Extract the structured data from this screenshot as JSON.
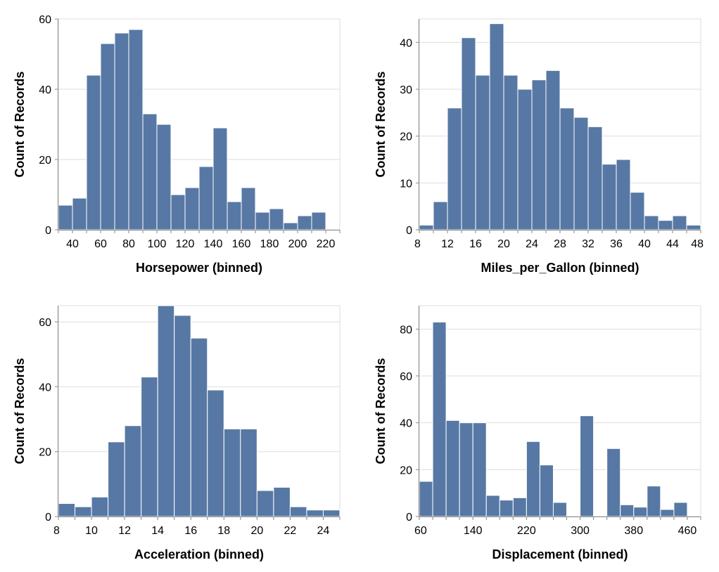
{
  "bar_color": "#5778a4",
  "chart_data": [
    {
      "type": "bar",
      "xlabel": "Horsepower (binned)",
      "ylabel": "Count of Records",
      "bin_edges": [
        30,
        40,
        50,
        60,
        70,
        80,
        90,
        100,
        110,
        120,
        130,
        140,
        150,
        160,
        170,
        180,
        190,
        200,
        210,
        220,
        230
      ],
      "values": [
        7,
        9,
        44,
        53,
        56,
        57,
        33,
        30,
        10,
        12,
        18,
        29,
        8,
        12,
        5,
        6,
        2,
        4,
        5,
        0
      ],
      "xlim": [
        30,
        230
      ],
      "ylim": [
        0,
        60
      ],
      "xticks": [
        40,
        60,
        80,
        100,
        120,
        140,
        160,
        180,
        200,
        220
      ],
      "yticks": [
        0,
        20,
        40,
        60
      ],
      "grid": true
    },
    {
      "type": "bar",
      "xlabel": "Miles_per_Gallon (binned)",
      "ylabel": "Count of Records",
      "bin_edges": [
        8,
        10,
        12,
        14,
        16,
        18,
        20,
        22,
        24,
        26,
        28,
        30,
        32,
        34,
        36,
        38,
        40,
        42,
        44,
        46,
        48
      ],
      "values": [
        1,
        6,
        26,
        41,
        33,
        44,
        33,
        30,
        32,
        34,
        26,
        24,
        22,
        14,
        15,
        8,
        3,
        2,
        3,
        1
      ],
      "xlim": [
        8,
        48
      ],
      "ylim": [
        0,
        45
      ],
      "xticks": [
        8,
        12,
        16,
        20,
        24,
        28,
        32,
        36,
        40,
        44,
        48
      ],
      "yticks": [
        0,
        10,
        20,
        30,
        40
      ],
      "grid": true
    },
    {
      "type": "bar",
      "xlabel": "Acceleration (binned)",
      "ylabel": "Count of Records",
      "bin_edges": [
        8,
        9,
        10,
        11,
        12,
        13,
        14,
        15,
        16,
        17,
        18,
        19,
        20,
        21,
        22,
        23,
        24,
        25
      ],
      "values": [
        4,
        3,
        6,
        23,
        28,
        43,
        65,
        62,
        55,
        39,
        27,
        27,
        8,
        9,
        3,
        2,
        2
      ],
      "xlim": [
        8,
        25
      ],
      "ylim": [
        0,
        65
      ],
      "xticks": [
        8,
        10,
        12,
        14,
        16,
        18,
        20,
        22,
        24
      ],
      "yticks": [
        0,
        20,
        40,
        60
      ],
      "grid": true
    },
    {
      "type": "bar",
      "xlabel": "Displacement (binned)",
      "ylabel": "Count of Records",
      "bin_edges": [
        60,
        80,
        100,
        120,
        140,
        160,
        180,
        200,
        220,
        240,
        260,
        280,
        300,
        320,
        340,
        360,
        380,
        400,
        420,
        440,
        460,
        480
      ],
      "values": [
        15,
        83,
        41,
        40,
        40,
        9,
        7,
        8,
        32,
        22,
        6,
        0,
        43,
        0,
        29,
        5,
        4,
        13,
        3,
        6,
        0
      ],
      "xlim": [
        60,
        480
      ],
      "ylim": [
        0,
        90
      ],
      "xticks": [
        60,
        140,
        220,
        300,
        380,
        460
      ],
      "yticks": [
        0,
        20,
        40,
        60,
        80
      ],
      "grid": true
    }
  ]
}
